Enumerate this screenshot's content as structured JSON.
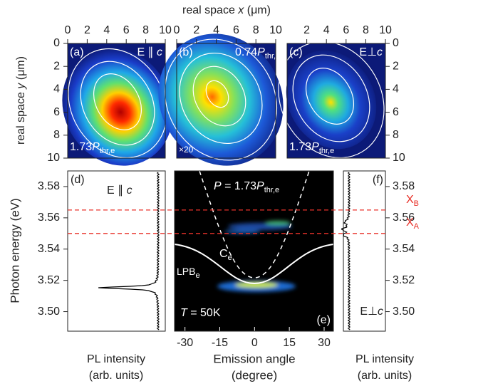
{
  "top": {
    "x_title": [
      "real space ",
      "x",
      " (μm)"
    ],
    "y_title": [
      "real space ",
      "y",
      " (μm)"
    ],
    "xlim": [
      0,
      10
    ],
    "ylim": [
      0,
      10
    ],
    "yticks": [
      0,
      2,
      4,
      6,
      8,
      10
    ],
    "panels": [
      {
        "tag": "(a)",
        "corner": [
          "E ∥ ",
          "c"
        ],
        "power": [
          "1.73",
          "P",
          "thr,e"
        ],
        "xticks": [
          0,
          2,
          4,
          6,
          8,
          10
        ]
      },
      {
        "tag": "(b)",
        "power": [
          "0.74",
          "P",
          "thr,e"
        ],
        "note": "×20",
        "xticks": [
          0,
          2,
          4,
          6,
          8,
          10
        ]
      },
      {
        "tag": "(c)",
        "corner": [
          "E⊥",
          "c"
        ],
        "power": [
          "1.73",
          "P",
          "thr,e"
        ],
        "xticks": [
          2,
          4,
          6,
          8,
          10
        ]
      }
    ]
  },
  "bottom": {
    "y_title": "Photon energy (eV)",
    "ylim": [
      3.4875,
      3.59
    ],
    "yticks": [
      {
        "value": 3.5,
        "label": "3.50"
      },
      3.52,
      3.54,
      3.56,
      3.58
    ],
    "d": {
      "tag": "(d)",
      "corner": [
        "E ∥ ",
        "c"
      ],
      "x_title": [
        "PL intensity",
        "(arb. units)"
      ]
    },
    "e": {
      "tag": "(e)",
      "power": [
        "P",
        " = 1.73",
        "P",
        "thr,e"
      ],
      "temperature": [
        "T",
        " = 50K"
      ],
      "xlim": [
        -34.5,
        34
      ],
      "xticks": [
        -30,
        -15,
        0,
        15,
        30
      ],
      "x_title": [
        "Emission angle",
        "(degree)"
      ],
      "cavity_label": [
        "C",
        "e"
      ],
      "lpb_label": [
        "LPB",
        "e"
      ]
    },
    "f": {
      "tag": "(f)",
      "corner": [
        "E⊥",
        "c"
      ],
      "x_title": [
        "PL intensity",
        "(arb. units)"
      ],
      "exciton_lines": [
        {
          "label": [
            "X",
            "B"
          ],
          "value": 3.565
        },
        {
          "label": [
            "X",
            "A"
          ],
          "value": 3.55
        }
      ]
    }
  }
}
